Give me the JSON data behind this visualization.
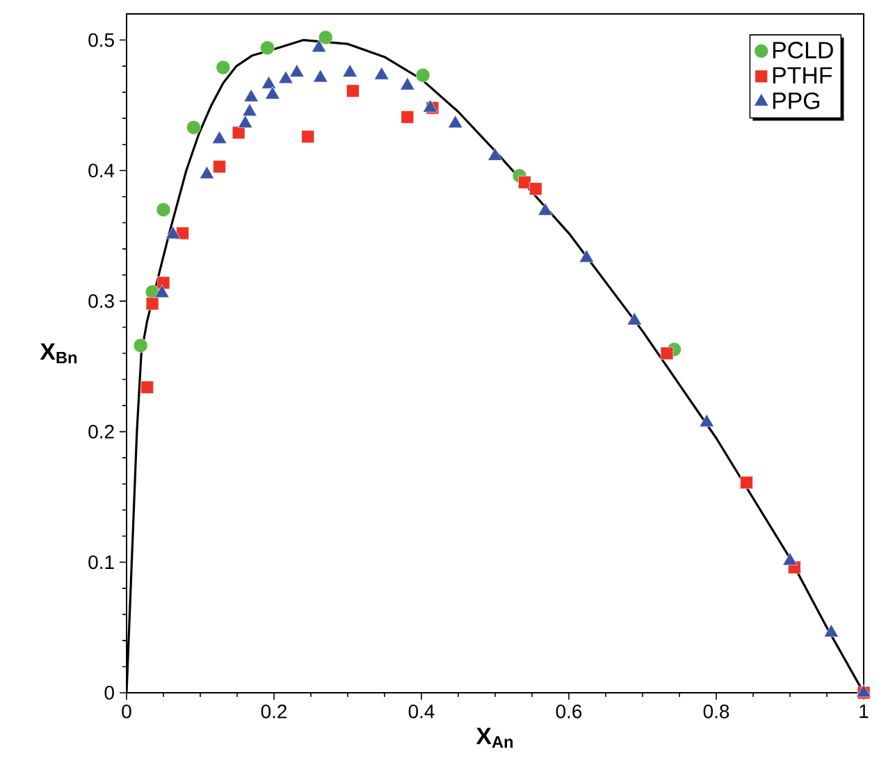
{
  "chart_data": {
    "type": "scatter",
    "xlabel": "X$_{An}$",
    "ylabel": "X$_{Bn}$",
    "xlim": [
      0,
      1
    ],
    "ylim": [
      0,
      0.52
    ],
    "xticks": [
      0,
      0.2,
      0.4,
      0.6,
      0.8,
      1
    ],
    "yticks": [
      0,
      0.1,
      0.2,
      0.3,
      0.4,
      0.5
    ],
    "grid": false,
    "legend": "top right",
    "series": [
      {
        "name": "PCLD",
        "color": "#5cb946",
        "marker": "circle",
        "x": [
          0.019,
          0.035,
          0.05,
          0.091,
          0.131,
          0.191,
          0.27,
          0.402,
          0.533,
          0.743
        ],
        "values": [
          0.266,
          0.307,
          0.37,
          0.433,
          0.479,
          0.494,
          0.502,
          0.473,
          0.396,
          0.263
        ]
      },
      {
        "name": "PTHF",
        "color": "#ee3124",
        "marker": "square",
        "x": [
          0.028,
          0.035,
          0.05,
          0.076,
          0.126,
          0.152,
          0.246,
          0.307,
          0.381,
          0.415,
          0.54,
          0.555,
          0.733,
          0.841,
          0.906,
          1.0
        ],
        "values": [
          0.234,
          0.298,
          0.314,
          0.352,
          0.403,
          0.429,
          0.426,
          0.461,
          0.441,
          0.448,
          0.391,
          0.386,
          0.26,
          0.161,
          0.096,
          0
        ]
      },
      {
        "name": "PPG",
        "color": "#3a53a4",
        "marker": "triangle",
        "x": [
          0.048,
          0.063,
          0.109,
          0.126,
          0.161,
          0.167,
          0.169,
          0.193,
          0.198,
          0.216,
          0.231,
          0.261,
          0.263,
          0.303,
          0.346,
          0.381,
          0.412,
          0.446,
          0.5,
          0.568,
          0.624,
          0.689,
          0.787,
          0.9,
          0.956,
          1.0
        ],
        "values": [
          0.306,
          0.351,
          0.397,
          0.424,
          0.436,
          0.445,
          0.456,
          0.466,
          0.458,
          0.47,
          0.475,
          0.494,
          0.471,
          0.475,
          0.473,
          0.465,
          0.448,
          0.436,
          0.411,
          0.369,
          0.333,
          0.285,
          0.207,
          0.101,
          0.046,
          0
        ]
      },
      {
        "type": "line",
        "color": "#000000",
        "marker": "none",
        "line_style": "solid",
        "x": [
          0,
          0.007,
          0.014,
          0.02,
          0.028,
          0.057,
          0.081,
          0.098,
          0.115,
          0.131,
          0.149,
          0.17,
          0.2,
          0.24,
          0.3,
          0.35,
          0.4,
          0.45,
          0.5,
          0.6,
          0.7,
          0.8,
          0.9,
          0.95,
          1.0
        ],
        "values": [
          0,
          0.1,
          0.2,
          0.26,
          0.285,
          0.35,
          0.4,
          0.428,
          0.45,
          0.467,
          0.48,
          0.488,
          0.493,
          0.5,
          0.497,
          0.487,
          0.47,
          0.445,
          0.415,
          0.352,
          0.277,
          0.195,
          0.103,
          0.05,
          0
        ]
      }
    ]
  }
}
